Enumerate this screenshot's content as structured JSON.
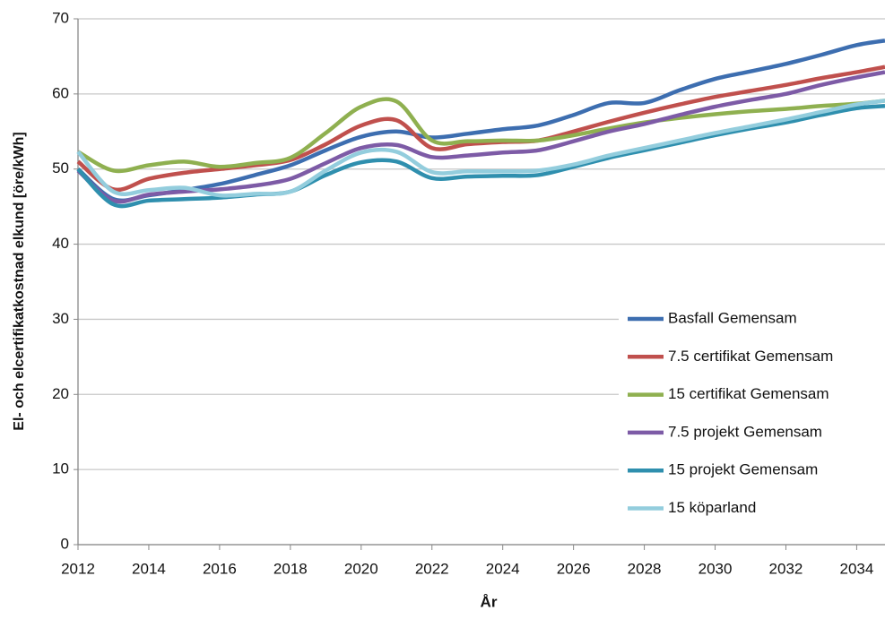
{
  "chart_data": {
    "type": "line",
    "x_label": "År",
    "y_label": "El- och elcertifikatkostnad elkund [öre/kWh]",
    "x": [
      2012,
      2013,
      2014,
      2015,
      2016,
      2017,
      2018,
      2019,
      2020,
      2021,
      2022,
      2023,
      2024,
      2025,
      2026,
      2027,
      2028,
      2029,
      2030,
      2031,
      2032,
      2033,
      2034,
      2034.8
    ],
    "series": [
      {
        "name": "Basfall Gemensam",
        "color": "#3d6eb0",
        "values": [
          50,
          46,
          46.5,
          47.2,
          48,
          49.2,
          50.5,
          52.5,
          54.3,
          55,
          54.2,
          54.7,
          55.3,
          55.8,
          57.2,
          58.8,
          58.8,
          60.5,
          62,
          63,
          64,
          65.2,
          66.5,
          67.1
        ]
      },
      {
        "name": "7.5 certifikat Gemensam",
        "color": "#c0504d",
        "values": [
          51,
          47.3,
          48.7,
          49.5,
          50,
          50.5,
          51.2,
          53.3,
          55.8,
          56.5,
          52.8,
          53.3,
          53.6,
          53.8,
          55,
          56.3,
          57.5,
          58.6,
          59.6,
          60.4,
          61.2,
          62.1,
          62.9,
          63.6
        ]
      },
      {
        "name": "15 certifikat Gemensam",
        "color": "#8fb050",
        "values": [
          52.3,
          49.8,
          50.5,
          51,
          50.3,
          50.8,
          51.5,
          54.8,
          58.3,
          59,
          53.8,
          53.7,
          53.8,
          53.8,
          54.5,
          55.4,
          56.2,
          56.8,
          57.3,
          57.7,
          58,
          58.4,
          58.7,
          59.1
        ]
      },
      {
        "name": "7.5 projekt Gemensam",
        "color": "#7d5ba6",
        "values": [
          49.8,
          45.8,
          46.6,
          47,
          47.3,
          47.8,
          48.7,
          50.8,
          52.8,
          53.2,
          51.6,
          51.8,
          52.2,
          52.5,
          53.7,
          55,
          56,
          57.2,
          58.3,
          59.2,
          60,
          61.2,
          62.2,
          62.9
        ]
      },
      {
        "name": "15 projekt Gemensam",
        "color": "#2f8fae",
        "values": [
          50,
          45.3,
          45.8,
          46,
          46.2,
          46.6,
          47,
          49.2,
          50.9,
          51,
          48.8,
          49,
          49.1,
          49.2,
          50.3,
          51.5,
          52.5,
          53.5,
          54.5,
          55.4,
          56.2,
          57.2,
          58.1,
          58.4
        ]
      },
      {
        "name": "15 köparland",
        "color": "#93cddd",
        "values": [
          52.3,
          47,
          47.2,
          47.5,
          46.5,
          46.7,
          47,
          49.8,
          52.2,
          52.3,
          49.6,
          49.7,
          49.7,
          49.8,
          50.6,
          51.8,
          52.8,
          53.8,
          54.8,
          55.7,
          56.6,
          57.6,
          58.6,
          59.1
        ]
      }
    ],
    "xlim": [
      2012,
      2034.8
    ],
    "xticks": [
      2012,
      2014,
      2016,
      2018,
      2020,
      2022,
      2024,
      2026,
      2028,
      2030,
      2032,
      2034
    ],
    "ylim": [
      0,
      70
    ],
    "yticks": [
      0,
      10,
      20,
      30,
      40,
      50,
      60,
      70
    ],
    "grid": true,
    "legend": "lower right"
  }
}
